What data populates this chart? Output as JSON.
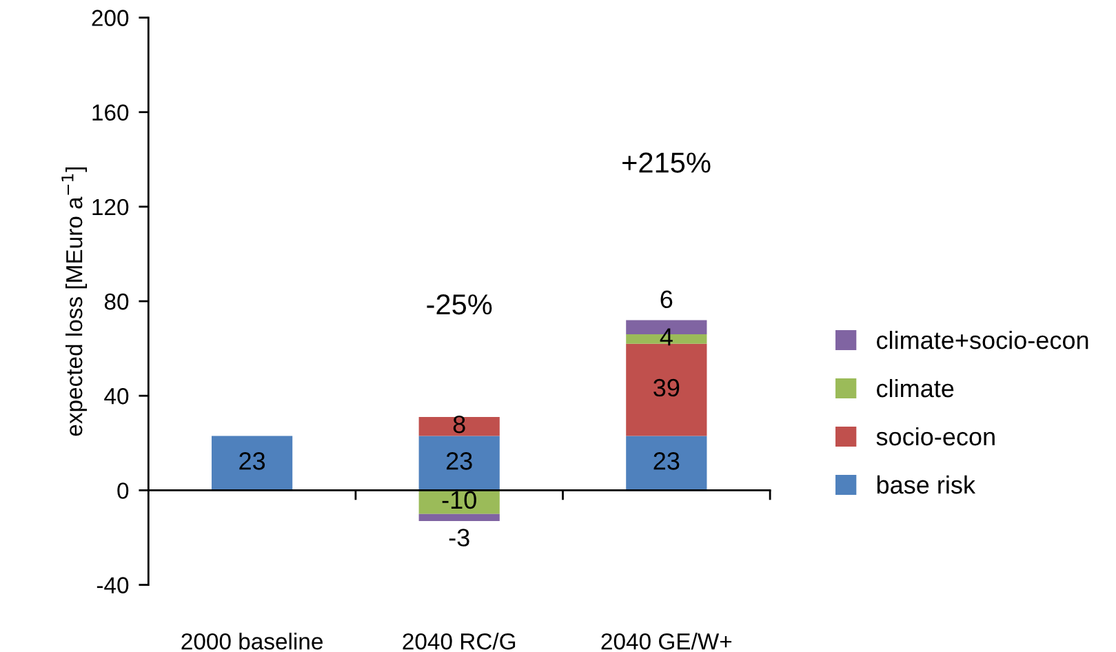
{
  "chart_data": {
    "type": "bar",
    "stacked": true,
    "ylabel": "expected loss [MEuro a$^{−1}$]",
    "categories": [
      "2000 baseline",
      "2040 RC/G",
      "2040 GE/W+"
    ],
    "series": [
      {
        "name": "base risk",
        "color": "#4f81bd",
        "values": [
          23,
          23,
          23
        ]
      },
      {
        "name": "socio-econ",
        "color": "#c0504d",
        "values": [
          null,
          8,
          39
        ]
      },
      {
        "name": "climate",
        "color": "#9bbb59",
        "values": [
          null,
          -10,
          4
        ]
      },
      {
        "name": "climate+socio-econ",
        "color": "#8064a2",
        "values": [
          null,
          -3,
          6
        ]
      }
    ],
    "ylim": [
      -40,
      200
    ],
    "yticks": [
      -40,
      0,
      40,
      80,
      120,
      160,
      200
    ],
    "data_labels": true,
    "legend": "right",
    "annotations": [
      "-25%",
      "+215%"
    ]
  }
}
